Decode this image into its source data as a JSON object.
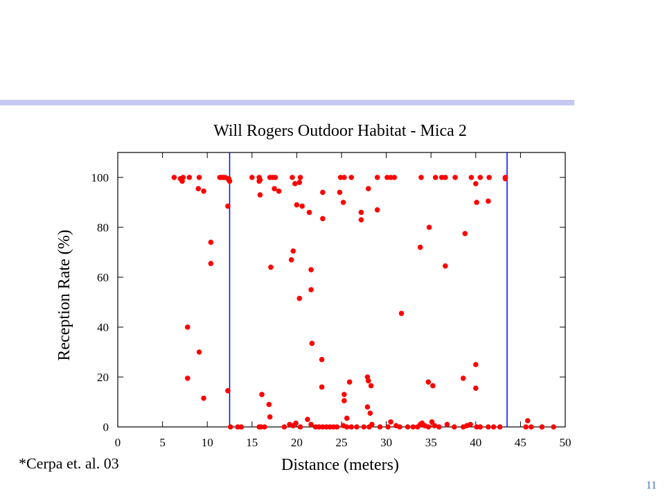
{
  "slide": {
    "citation": "*Cerpa et. al. 03",
    "page_number": "11"
  },
  "colors": {
    "header_bar": "#c5c7f2",
    "points": "#ff0000",
    "markers": "#0000ff",
    "page_number": "#4a6fb6"
  },
  "chart_data": {
    "type": "scatter",
    "title": "Will Rogers Outdoor Habitat - Mica 2",
    "xlabel": "Distance (meters)",
    "ylabel": "Reception Rate (%)",
    "xlim": [
      0,
      50
    ],
    "ylim": [
      0,
      110
    ],
    "xticks": [
      0,
      5,
      10,
      15,
      20,
      25,
      30,
      35,
      40,
      45,
      50
    ],
    "yticks": [
      0,
      20,
      40,
      60,
      80,
      100
    ],
    "grid": false,
    "vertical_lines": [
      12.5,
      43.5
    ],
    "points": [
      [
        6.3,
        100
      ],
      [
        7.0,
        99.5
      ],
      [
        7.2,
        98.5
      ],
      [
        7.3,
        100
      ],
      [
        8.0,
        100
      ],
      [
        9.1,
        100
      ],
      [
        12.0,
        100
      ],
      [
        11.4,
        100
      ],
      [
        11.6,
        100
      ],
      [
        11.8,
        100
      ],
      [
        12.4,
        99
      ],
      [
        12.5,
        98.5
      ],
      [
        12.4,
        99.5
      ],
      [
        15.0,
        100
      ],
      [
        15.8,
        100
      ],
      [
        15.9,
        99
      ],
      [
        15.8,
        98.5
      ],
      [
        17.0,
        100
      ],
      [
        17.3,
        100
      ],
      [
        17.6,
        100
      ],
      [
        19.5,
        100
      ],
      [
        20.4,
        100
      ],
      [
        24.9,
        100
      ],
      [
        25.3,
        100
      ],
      [
        26.1,
        100
      ],
      [
        29.0,
        100
      ],
      [
        30.1,
        100
      ],
      [
        30.5,
        100
      ],
      [
        30.9,
        100
      ],
      [
        33.9,
        100
      ],
      [
        35.5,
        100
      ],
      [
        36.2,
        100
      ],
      [
        36.6,
        100
      ],
      [
        37.7,
        100
      ],
      [
        39.5,
        100
      ],
      [
        40.5,
        100
      ],
      [
        41.5,
        100
      ],
      [
        43.3,
        100
      ],
      [
        43.3,
        99.5
      ],
      [
        9.0,
        95.5
      ],
      [
        9.6,
        94.5
      ],
      [
        15.9,
        93
      ],
      [
        17.5,
        95.5
      ],
      [
        18.0,
        94.5
      ],
      [
        19.8,
        97.5
      ],
      [
        20.0,
        89
      ],
      [
        20.3,
        98
      ],
      [
        20.6,
        88.5
      ],
      [
        21.4,
        86
      ],
      [
        22.9,
        94
      ],
      [
        24.8,
        94
      ],
      [
        25.2,
        90
      ],
      [
        27.2,
        86
      ],
      [
        27.2,
        83
      ],
      [
        28.0,
        95.5
      ],
      [
        29.0,
        87
      ],
      [
        22.9,
        83.5
      ],
      [
        40.0,
        97.5
      ],
      [
        40.1,
        90
      ],
      [
        41.4,
        90.5
      ],
      [
        12.3,
        88.5
      ],
      [
        10.4,
        74
      ],
      [
        10.4,
        65.5
      ],
      [
        17.1,
        64
      ],
      [
        19.4,
        67
      ],
      [
        19.6,
        70.5
      ],
      [
        21.6,
        63
      ],
      [
        21.6,
        55
      ],
      [
        20.3,
        51.5
      ],
      [
        33.8,
        72
      ],
      [
        34.8,
        80
      ],
      [
        36.6,
        64.5
      ],
      [
        38.8,
        77.5
      ],
      [
        31.7,
        45.5
      ],
      [
        7.8,
        40
      ],
      [
        9.1,
        30
      ],
      [
        7.8,
        19.5
      ],
      [
        9.6,
        11.5
      ],
      [
        12.3,
        14.5
      ],
      [
        16.1,
        13
      ],
      [
        16.9,
        9
      ],
      [
        17.0,
        4
      ],
      [
        21.7,
        33.5
      ],
      [
        22.8,
        27
      ],
      [
        22.8,
        16
      ],
      [
        25.3,
        13
      ],
      [
        25.3,
        10.5
      ],
      [
        25.9,
        18
      ],
      [
        25.6,
        3.5
      ],
      [
        27.9,
        20
      ],
      [
        28.0,
        18.5
      ],
      [
        28.3,
        16.5
      ],
      [
        27.9,
        8
      ],
      [
        28.2,
        5.5
      ],
      [
        34.7,
        18
      ],
      [
        35.2,
        16.5
      ],
      [
        38.6,
        19.5
      ],
      [
        40.0,
        25
      ],
      [
        40.0,
        15.5
      ],
      [
        45.8,
        2.5
      ],
      [
        12.6,
        0
      ],
      [
        13.4,
        0
      ],
      [
        13.8,
        0
      ],
      [
        15.8,
        0
      ],
      [
        16.0,
        0
      ],
      [
        16.4,
        0
      ],
      [
        18.6,
        0
      ],
      [
        19.2,
        1
      ],
      [
        19.6,
        0.5
      ],
      [
        19.9,
        1.5
      ],
      [
        20.4,
        0
      ],
      [
        21.2,
        3
      ],
      [
        21.6,
        1
      ],
      [
        22.1,
        0
      ],
      [
        22.5,
        0
      ],
      [
        22.9,
        0
      ],
      [
        23.3,
        0
      ],
      [
        23.7,
        0
      ],
      [
        24.1,
        0
      ],
      [
        24.5,
        0
      ],
      [
        25.2,
        0.5
      ],
      [
        25.6,
        0
      ],
      [
        26.1,
        0
      ],
      [
        26.7,
        0
      ],
      [
        27.5,
        0
      ],
      [
        28.1,
        0
      ],
      [
        28.4,
        1
      ],
      [
        29.3,
        0
      ],
      [
        30.2,
        0
      ],
      [
        30.5,
        2
      ],
      [
        31.1,
        0.5
      ],
      [
        31.5,
        0
      ],
      [
        32.4,
        0
      ],
      [
        33.0,
        0
      ],
      [
        33.5,
        0
      ],
      [
        33.8,
        1
      ],
      [
        34.0,
        1.5
      ],
      [
        34.3,
        0.5
      ],
      [
        34.7,
        0
      ],
      [
        35.1,
        2
      ],
      [
        35.4,
        0.5
      ],
      [
        35.9,
        0
      ],
      [
        36.8,
        1
      ],
      [
        37.6,
        0
      ],
      [
        38.6,
        0
      ],
      [
        39.0,
        0.5
      ],
      [
        39.4,
        1
      ],
      [
        40.1,
        0
      ],
      [
        40.5,
        0
      ],
      [
        41.4,
        0
      ],
      [
        42.0,
        0
      ],
      [
        42.7,
        0
      ],
      [
        45.6,
        0
      ],
      [
        46.2,
        0
      ],
      [
        47.4,
        0
      ],
      [
        48.7,
        0
      ]
    ]
  }
}
